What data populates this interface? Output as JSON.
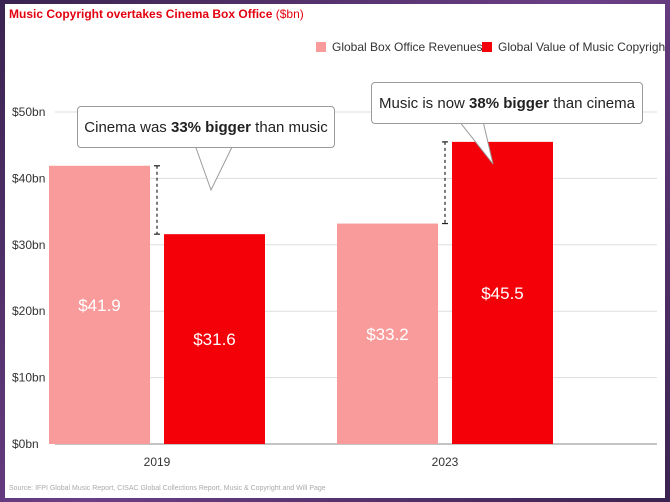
{
  "title": {
    "main": "Music Copyright overtakes Cinema Box Office",
    "unit": "($bn)"
  },
  "source": "Source: IFPI Global Music Report, CISAC Global Collections Report, Music & Copyright and Will Page",
  "colors": {
    "box_office": "#f99b9b",
    "music": "#f40009",
    "title": "#e3000f"
  },
  "annotations": [
    {
      "pre": "Cinema was ",
      "bold": "33% bigger",
      "post": " than music"
    },
    {
      "pre": "Music is now ",
      "bold": "38% bigger",
      "post": " than cinema"
    }
  ],
  "chart_data": {
    "type": "bar",
    "categories": [
      "2019",
      "2023"
    ],
    "series": [
      {
        "name": "Global Box Office Revenues",
        "values": [
          41.9,
          33.2
        ],
        "labels": [
          "$41.9",
          "$33.2"
        ]
      },
      {
        "name": "Global Value of Music Copyright",
        "values": [
          31.6,
          45.5
        ],
        "labels": [
          "$31.6",
          "$45.5"
        ]
      }
    ],
    "ylim": [
      0,
      50
    ],
    "yticks": [
      0,
      10,
      20,
      30,
      40,
      50
    ],
    "ytick_labels": [
      "$0bn",
      "$10bn",
      "$20bn",
      "$30bn",
      "$40bn",
      "$50bn"
    ],
    "legend": "top-right",
    "grid": true
  }
}
